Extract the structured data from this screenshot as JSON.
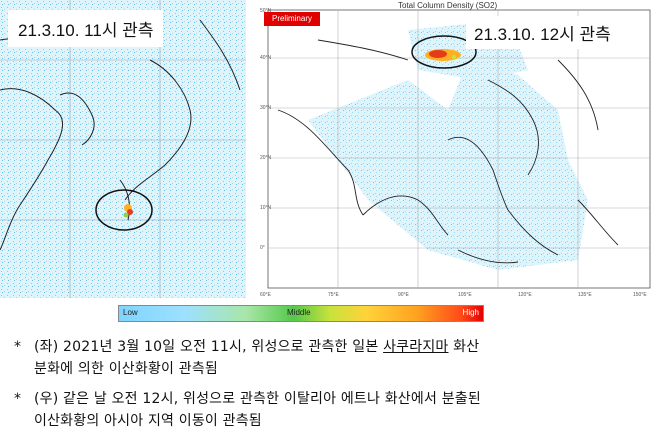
{
  "left_map": {
    "label": "21.3.10. 11시 관측"
  },
  "right_map": {
    "title": "Total Column Density (SO2)",
    "badge": "Preliminary",
    "label": "21.3.10. 12시 관측",
    "lat_labels": [
      "50°N",
      "40°N",
      "30°N",
      "20°N",
      "10°N",
      "0°"
    ],
    "lon_labels": [
      "60°E",
      "75°E",
      "90°E",
      "105°E",
      "120°E",
      "135°E",
      "150°E"
    ]
  },
  "colorbar": {
    "low": "Low",
    "middle": "Middle",
    "high": "High"
  },
  "notes": [
    {
      "bullet": "*",
      "line1_pre": "(좌) 2021년 3월 10일 오전 11시, 위성으로 관측한 일본 ",
      "line1_underlined": "사쿠라지마",
      "line1_post": " 화산",
      "line2": "분화에 의한 이산화황이 관측됨"
    },
    {
      "bullet": "*",
      "line1": "(우) 같은 날 오전 12시, 위성으로 관측한 이탈리아 에트나 화산에서 분출된",
      "line2": "이산화황의 아시아 지역 이동이 관측됨"
    }
  ]
}
